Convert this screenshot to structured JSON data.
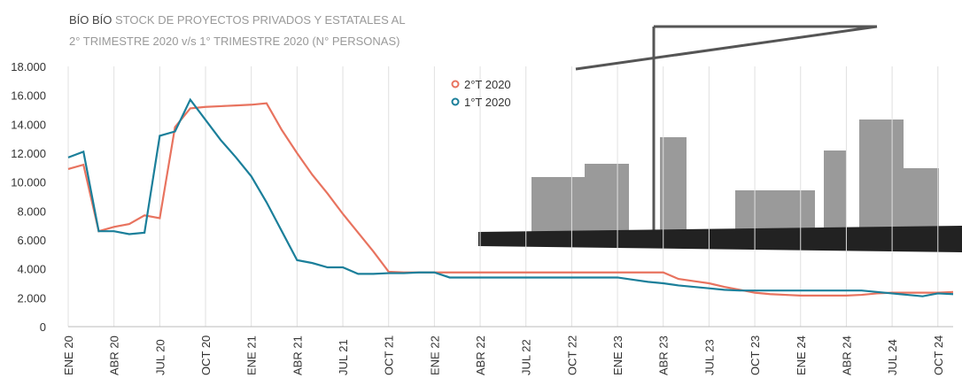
{
  "chart_data": {
    "type": "line",
    "title_region": "BÍO BÍO",
    "title": "STOCK DE PROYECTOS PRIVADOS Y ESTATALES AL",
    "subtitle": "2° TRIMESTRE 2020 v/s 1° TRIMESTRE 2020 (N° PERSONAS)",
    "categories": [
      "ENE 20",
      null,
      null,
      "ABR 20",
      null,
      null,
      "JUL 20",
      null,
      null,
      "OCT 20",
      null,
      null,
      "ENE 21",
      null,
      null,
      "ABR 21",
      null,
      null,
      "JUL 21",
      null,
      null,
      "OCT 21",
      null,
      null,
      "ENE 22",
      null,
      null,
      "ABR 22",
      null,
      null,
      "JUL 22",
      null,
      null,
      "OCT 22",
      null,
      null,
      "ENE 23",
      null,
      null,
      "ABR 23",
      null,
      null,
      "JUL 23",
      null,
      null,
      "OCT 23",
      null,
      null,
      "ENE 24",
      null,
      null,
      "ABR 24",
      null,
      null,
      "JUL 24",
      null,
      null,
      "OCT 24",
      null
    ],
    "series": [
      {
        "name": "2°T 2020",
        "color": "#e8735f",
        "values": [
          10900,
          11200,
          6600,
          6900,
          7100,
          7700,
          7500,
          13800,
          15100,
          15200,
          15250,
          15300,
          15350,
          15450,
          13600,
          12000,
          10500,
          9200,
          7800,
          6500,
          5200,
          3800,
          3750,
          3750,
          3750,
          3750,
          3750,
          3750,
          3750,
          3750,
          3750,
          3750,
          3750,
          3750,
          3750,
          3750,
          3750,
          3750,
          3750,
          3750,
          3300,
          3150,
          3000,
          2750,
          2550,
          2350,
          2250,
          2200,
          2150,
          2150,
          2150,
          2150,
          2200,
          2300,
          2350,
          2350,
          2350,
          2350,
          2400
        ]
      },
      {
        "name": "1°T 2020",
        "color": "#1b7f9a",
        "values": [
          11700,
          12100,
          6600,
          6600,
          6400,
          6500,
          13200,
          13500,
          15700,
          14300,
          12900,
          11700,
          10400,
          8600,
          6600,
          4600,
          4400,
          4100,
          4100,
          3650,
          3650,
          3700,
          3700,
          3750,
          3750,
          3400,
          3400,
          3400,
          3400,
          3400,
          3400,
          3400,
          3400,
          3400,
          3400,
          3400,
          3400,
          3250,
          3100,
          3000,
          2850,
          2750,
          2650,
          2550,
          2500,
          2500,
          2500,
          2500,
          2500,
          2500,
          2500,
          2500,
          2500,
          2400,
          2300,
          2200,
          2100,
          2300,
          2250
        ]
      }
    ],
    "ylim": [
      0,
      18000
    ],
    "yticks": [
      0,
      {
        "value": 2000,
        "label": "2.000"
      },
      {
        "value": 4000,
        "label": "4.000"
      },
      {
        "value": 6000,
        "label": "6.000"
      },
      {
        "value": 8000,
        "label": "8.000"
      },
      {
        "value": 10000,
        "label": "10.000"
      },
      {
        "value": 12000,
        "label": "12.000"
      },
      {
        "value": 14000,
        "label": "14.000"
      },
      {
        "value": 16000,
        "label": "16.000"
      },
      {
        "value": 18000,
        "label": "18.000"
      }
    ]
  }
}
